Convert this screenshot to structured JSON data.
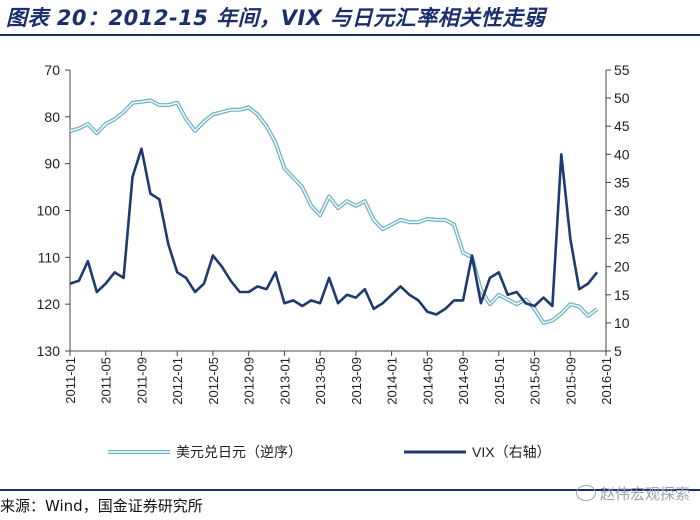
{
  "title": "图表 20：2012-15 年间，VIX 与日元汇率相关性走弱",
  "source": "来源：Wind，国金证券研究所",
  "watermark": "赵伟宏观探索",
  "colors": {
    "usdjpy": "#6fb3c6",
    "vix": "#1f3a6e",
    "title": "#1a2f6b",
    "axis": "#444444"
  },
  "chart_data": {
    "type": "line",
    "title": "图表 20：2012-15 年间，VIX 与日元汇率相关性走弱",
    "x_ticks": [
      "2011-01",
      "2011-05",
      "2011-09",
      "2012-01",
      "2012-05",
      "2012-09",
      "2013-01",
      "2013-05",
      "2013-09",
      "2014-01",
      "2014-05",
      "2014-09",
      "2015-01",
      "2015-05",
      "2015-09",
      "2016-01"
    ],
    "left_axis": {
      "label": "美元兑日元（逆序）",
      "inverted": true,
      "range": [
        70,
        130
      ],
      "ticks": [
        70,
        80,
        90,
        100,
        110,
        120,
        130
      ]
    },
    "right_axis": {
      "label": "VIX（右轴）",
      "range": [
        5,
        55
      ],
      "ticks": [
        5,
        10,
        15,
        20,
        25,
        30,
        35,
        40,
        45,
        50,
        55
      ]
    },
    "legend": [
      "美元兑日元（逆序）",
      "VIX（右轴）"
    ],
    "series": [
      {
        "name": "美元兑日元（逆序）",
        "axis": "left",
        "style": "double-line",
        "points": [
          [
            "2011-01",
            83
          ],
          [
            "2011-02",
            82.5
          ],
          [
            "2011-03",
            81.5
          ],
          [
            "2011-04",
            83.5
          ],
          [
            "2011-05",
            81.5
          ],
          [
            "2011-06",
            80.5
          ],
          [
            "2011-07",
            79
          ],
          [
            "2011-08",
            77
          ],
          [
            "2011-09",
            76.8
          ],
          [
            "2011-10",
            76.5
          ],
          [
            "2011-11",
            77.5
          ],
          [
            "2011-12",
            77.5
          ],
          [
            "2012-01",
            77
          ],
          [
            "2012-02",
            80.5
          ],
          [
            "2012-03",
            83
          ],
          [
            "2012-04",
            81
          ],
          [
            "2012-05",
            79.5
          ],
          [
            "2012-06",
            79
          ],
          [
            "2012-07",
            78.5
          ],
          [
            "2012-08",
            78.5
          ],
          [
            "2012-09",
            78
          ],
          [
            "2012-10",
            79.5
          ],
          [
            "2012-11",
            82
          ],
          [
            "2012-12",
            85.5
          ],
          [
            "2013-01",
            91
          ],
          [
            "2013-02",
            93
          ],
          [
            "2013-03",
            95
          ],
          [
            "2013-04",
            99
          ],
          [
            "2013-05",
            101
          ],
          [
            "2013-06",
            97
          ],
          [
            "2013-07",
            99.5
          ],
          [
            "2013-08",
            98
          ],
          [
            "2013-09",
            99
          ],
          [
            "2013-10",
            98
          ],
          [
            "2013-11",
            102
          ],
          [
            "2013-12",
            104
          ],
          [
            "2014-01",
            103
          ],
          [
            "2014-02",
            102
          ],
          [
            "2014-03",
            102.5
          ],
          [
            "2014-04",
            102.5
          ],
          [
            "2014-05",
            101.8
          ],
          [
            "2014-06",
            102
          ],
          [
            "2014-07",
            102
          ],
          [
            "2014-08",
            103
          ],
          [
            "2014-09",
            109
          ],
          [
            "2014-10",
            110
          ],
          [
            "2014-11",
            117
          ],
          [
            "2014-12",
            120
          ],
          [
            "2015-01",
            118
          ],
          [
            "2015-02",
            119
          ],
          [
            "2015-03",
            120
          ],
          [
            "2015-04",
            119
          ],
          [
            "2015-05",
            121
          ],
          [
            "2015-06",
            124
          ],
          [
            "2015-07",
            123.5
          ],
          [
            "2015-08",
            122
          ],
          [
            "2015-09",
            120
          ],
          [
            "2015-10",
            120.5
          ],
          [
            "2015-11",
            122.5
          ],
          [
            "2015-12",
            121
          ]
        ]
      },
      {
        "name": "VIX（右轴）",
        "axis": "right",
        "style": "solid",
        "points": [
          [
            "2011-01",
            17
          ],
          [
            "2011-02",
            17.5
          ],
          [
            "2011-03",
            21
          ],
          [
            "2011-04",
            15.5
          ],
          [
            "2011-05",
            17
          ],
          [
            "2011-06",
            19
          ],
          [
            "2011-07",
            18
          ],
          [
            "2011-08",
            36
          ],
          [
            "2011-09",
            41
          ],
          [
            "2011-10",
            33
          ],
          [
            "2011-11",
            32
          ],
          [
            "2011-12",
            24
          ],
          [
            "2012-01",
            19
          ],
          [
            "2012-02",
            18
          ],
          [
            "2012-03",
            15.5
          ],
          [
            "2012-04",
            17
          ],
          [
            "2012-05",
            22
          ],
          [
            "2012-06",
            20
          ],
          [
            "2012-07",
            17.5
          ],
          [
            "2012-08",
            15.5
          ],
          [
            "2012-09",
            15.5
          ],
          [
            "2012-10",
            16.5
          ],
          [
            "2012-11",
            16
          ],
          [
            "2012-12",
            19
          ],
          [
            "2013-01",
            13.5
          ],
          [
            "2013-02",
            14
          ],
          [
            "2013-03",
            13
          ],
          [
            "2013-04",
            14
          ],
          [
            "2013-05",
            13.5
          ],
          [
            "2013-06",
            18
          ],
          [
            "2013-07",
            13.5
          ],
          [
            "2013-08",
            15
          ],
          [
            "2013-09",
            14.5
          ],
          [
            "2013-10",
            16
          ],
          [
            "2013-11",
            12.5
          ],
          [
            "2013-12",
            13.5
          ],
          [
            "2014-01",
            15
          ],
          [
            "2014-02",
            16.5
          ],
          [
            "2014-03",
            15
          ],
          [
            "2014-04",
            14
          ],
          [
            "2014-05",
            12
          ],
          [
            "2014-06",
            11.5
          ],
          [
            "2014-07",
            12.5
          ],
          [
            "2014-08",
            14
          ],
          [
            "2014-09",
            14
          ],
          [
            "2014-10",
            22
          ],
          [
            "2014-11",
            13.5
          ],
          [
            "2014-12",
            18
          ],
          [
            "2015-01",
            19
          ],
          [
            "2015-02",
            15
          ],
          [
            "2015-03",
            15.5
          ],
          [
            "2015-04",
            13.5
          ],
          [
            "2015-05",
            13
          ],
          [
            "2015-06",
            14.5
          ],
          [
            "2015-07",
            13
          ],
          [
            "2015-08",
            40
          ],
          [
            "2015-09",
            25
          ],
          [
            "2015-10",
            16
          ],
          [
            "2015-11",
            17
          ],
          [
            "2015-12",
            19
          ]
        ]
      }
    ]
  }
}
